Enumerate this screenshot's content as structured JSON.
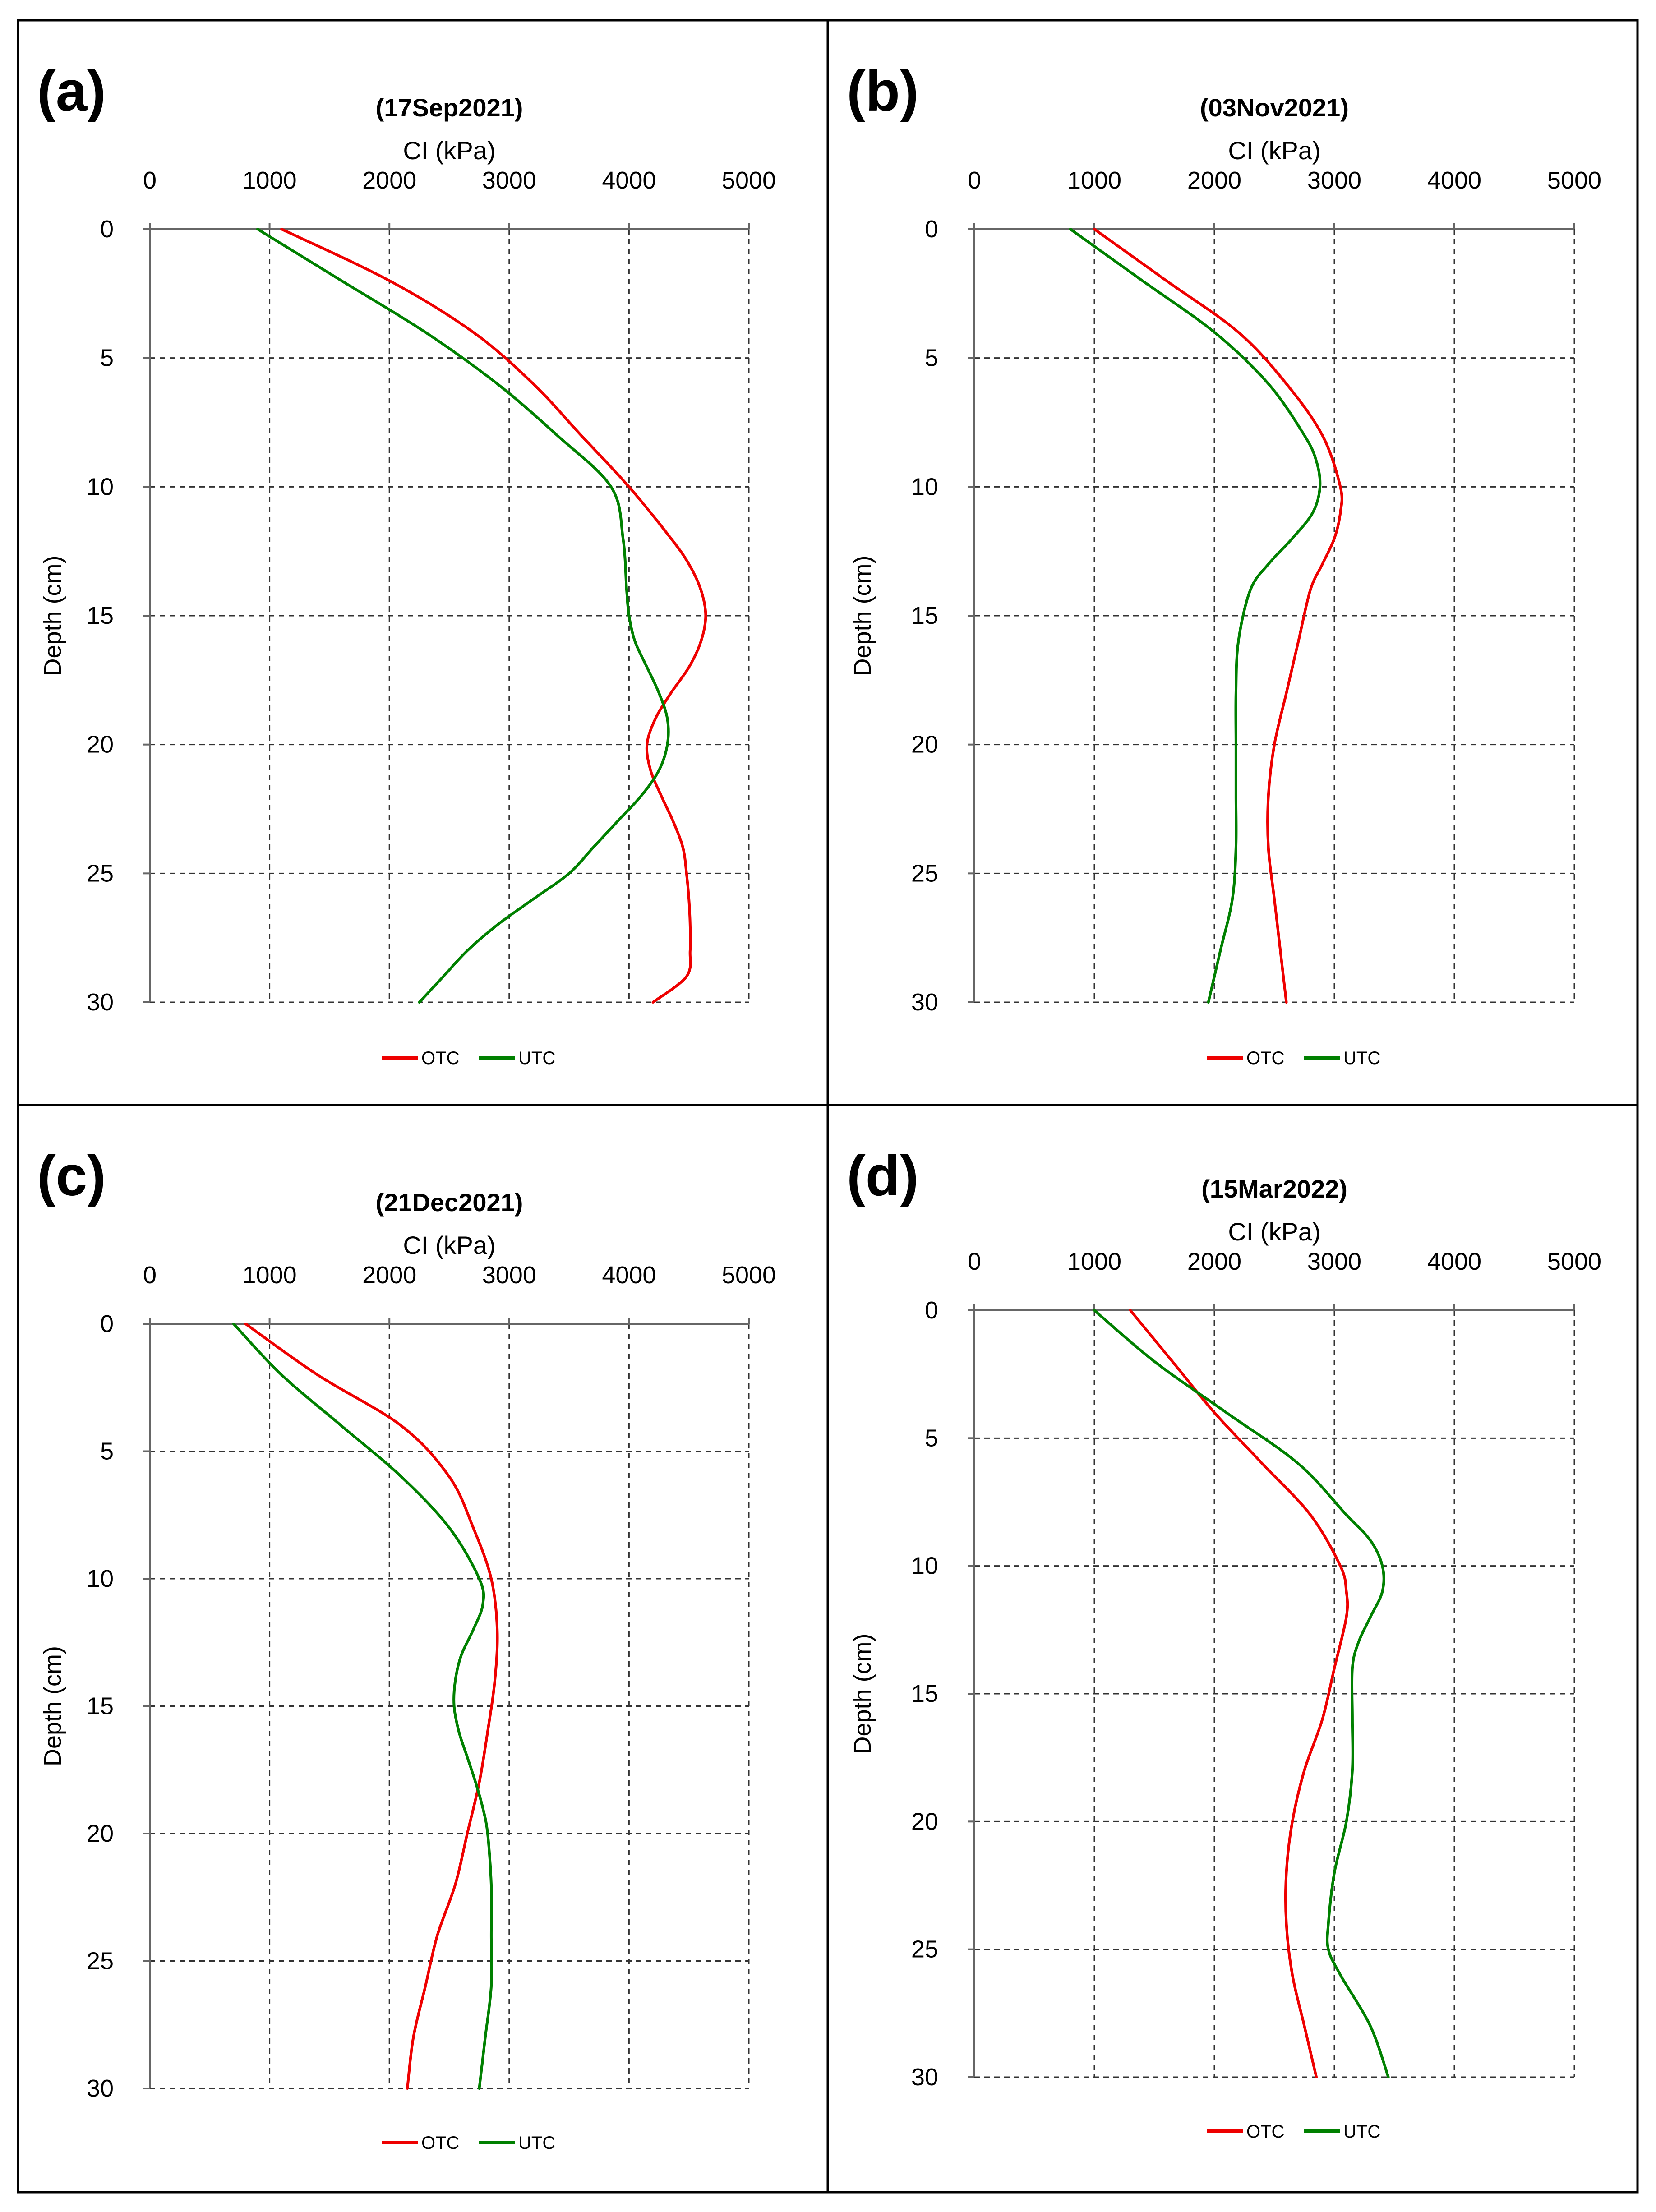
{
  "colors": {
    "OTC": "#ee0000",
    "UTC": "#008000"
  },
  "chart_data": [
    {
      "type": "line",
      "panel_label": "(a)",
      "title": "(17Sep2021)",
      "xlabel": "CI (kPa)",
      "ylabel": "Depth (cm)",
      "xlim": [
        0,
        5000
      ],
      "ylim": [
        0,
        30
      ],
      "x_ticks": [
        "0",
        "1000",
        "2000",
        "3000",
        "4000",
        "5000"
      ],
      "y_ticks": [
        "0",
        "5",
        "10",
        "15",
        "20",
        "25",
        "30"
      ],
      "grid": true,
      "legend": [
        "OTC",
        "UTC"
      ],
      "legend_position": "bottom",
      "series": [
        {
          "name": "OTC",
          "color": "#ee0000",
          "depth": [
            0,
            2,
            4,
            6,
            8,
            10,
            12,
            13,
            14,
            15,
            16,
            17,
            18,
            19,
            20,
            21,
            22,
            23,
            24,
            25,
            26,
            27,
            28,
            29,
            30
          ],
          "values": [
            1100,
            2000,
            2700,
            3200,
            3600,
            4000,
            4350,
            4500,
            4600,
            4640,
            4600,
            4500,
            4350,
            4220,
            4150,
            4180,
            4270,
            4370,
            4450,
            4480,
            4500,
            4510,
            4510,
            4480,
            4200
          ]
        },
        {
          "name": "UTC",
          "color": "#008000",
          "depth": [
            0,
            2,
            4,
            6,
            8,
            10,
            12,
            14,
            15,
            16,
            17,
            18,
            19,
            20,
            21,
            22,
            23,
            24,
            25,
            26,
            27,
            28,
            29,
            30
          ],
          "values": [
            900,
            1600,
            2300,
            2900,
            3400,
            3850,
            3950,
            3980,
            4000,
            4050,
            4150,
            4250,
            4320,
            4320,
            4250,
            4100,
            3900,
            3700,
            3500,
            3200,
            2900,
            2650,
            2450,
            2250
          ]
        }
      ]
    },
    {
      "type": "line",
      "panel_label": "(b)",
      "title": "(03Nov2021)",
      "xlabel": "CI (kPa)",
      "ylabel": "Depth (cm)",
      "xlim": [
        0,
        5000
      ],
      "ylim": [
        0,
        30
      ],
      "x_ticks": [
        "0",
        "1000",
        "2000",
        "3000",
        "4000",
        "5000"
      ],
      "y_ticks": [
        "0",
        "5",
        "10",
        "15",
        "20",
        "25",
        "30"
      ],
      "grid": true,
      "legend": [
        "OTC",
        "UTC"
      ],
      "legend_position": "bottom",
      "series": [
        {
          "name": "OTC",
          "color": "#ee0000",
          "depth": [
            0,
            2,
            4,
            6,
            8,
            10,
            11,
            12,
            13,
            14,
            16,
            18,
            20,
            22,
            24,
            26,
            28,
            30
          ],
          "values": [
            1000,
            1600,
            2200,
            2600,
            2900,
            3050,
            3050,
            3000,
            2900,
            2800,
            2700,
            2600,
            2500,
            2450,
            2450,
            2500,
            2550,
            2600
          ]
        },
        {
          "name": "UTC",
          "color": "#008000",
          "depth": [
            0,
            2,
            4,
            6,
            8,
            9,
            10,
            11,
            12,
            13,
            14,
            16,
            18,
            20,
            22,
            24,
            26,
            28,
            30
          ],
          "values": [
            800,
            1400,
            2000,
            2450,
            2750,
            2850,
            2880,
            2820,
            2650,
            2450,
            2300,
            2200,
            2180,
            2180,
            2180,
            2180,
            2150,
            2050,
            1950
          ]
        }
      ]
    },
    {
      "type": "line",
      "panel_label": "(c)",
      "title": "(21Dec2021)",
      "xlabel": "CI (kPa)",
      "ylabel": "Depth (cm)",
      "xlim": [
        0,
        5000
      ],
      "ylim": [
        0,
        30
      ],
      "x_ticks": [
        "0",
        "1000",
        "2000",
        "3000",
        "4000",
        "5000"
      ],
      "y_ticks": [
        "0",
        "5",
        "10",
        "15",
        "20",
        "25",
        "30"
      ],
      "grid": true,
      "legend": [
        "OTC",
        "UTC"
      ],
      "legend_position": "bottom",
      "series": [
        {
          "name": "OTC",
          "color": "#ee0000",
          "depth": [
            0,
            2,
            4,
            6,
            8,
            10,
            12,
            14,
            16,
            18,
            20,
            22,
            24,
            26,
            28,
            30
          ],
          "values": [
            800,
            1400,
            2100,
            2500,
            2700,
            2850,
            2900,
            2880,
            2820,
            2750,
            2650,
            2550,
            2400,
            2300,
            2200,
            2150
          ]
        },
        {
          "name": "UTC",
          "color": "#008000",
          "depth": [
            0,
            2,
            4,
            6,
            8,
            10,
            11,
            12,
            13,
            14,
            15,
            16,
            17,
            18,
            19,
            20,
            22,
            24,
            26,
            28,
            30
          ],
          "values": [
            700,
            1100,
            1600,
            2100,
            2500,
            2750,
            2780,
            2700,
            2600,
            2550,
            2540,
            2580,
            2650,
            2720,
            2780,
            2820,
            2850,
            2850,
            2850,
            2800,
            2750
          ]
        }
      ]
    },
    {
      "type": "line",
      "panel_label": "(d)",
      "title": "(15Mar2022)",
      "xlabel": "CI (kPa)",
      "ylabel": "Depth (cm)",
      "xlim": [
        0,
        5000
      ],
      "ylim": [
        0,
        30
      ],
      "x_ticks": [
        "0",
        "1000",
        "2000",
        "3000",
        "4000",
        "5000"
      ],
      "y_ticks": [
        "0",
        "5",
        "10",
        "15",
        "20",
        "25",
        "30"
      ],
      "grid": true,
      "legend": [
        "OTC",
        "UTC"
      ],
      "legend_position": "bottom",
      "series": [
        {
          "name": "OTC",
          "color": "#ee0000",
          "depth": [
            0,
            2,
            4,
            6,
            8,
            10,
            11,
            12,
            14,
            16,
            18,
            20,
            22,
            24,
            26,
            28,
            30
          ],
          "values": [
            1300,
            1650,
            2000,
            2400,
            2800,
            3050,
            3100,
            3100,
            3000,
            2900,
            2750,
            2650,
            2600,
            2600,
            2650,
            2750,
            2850
          ]
        },
        {
          "name": "UTC",
          "color": "#008000",
          "depth": [
            0,
            2,
            4,
            6,
            8,
            9,
            10,
            11,
            12,
            13,
            14,
            16,
            18,
            20,
            22,
            24,
            25,
            26,
            28,
            30
          ],
          "values": [
            1000,
            1500,
            2100,
            2700,
            3100,
            3300,
            3400,
            3400,
            3300,
            3200,
            3150,
            3150,
            3150,
            3100,
            3000,
            2950,
            2950,
            3050,
            3300,
            3450
          ]
        }
      ]
    }
  ]
}
